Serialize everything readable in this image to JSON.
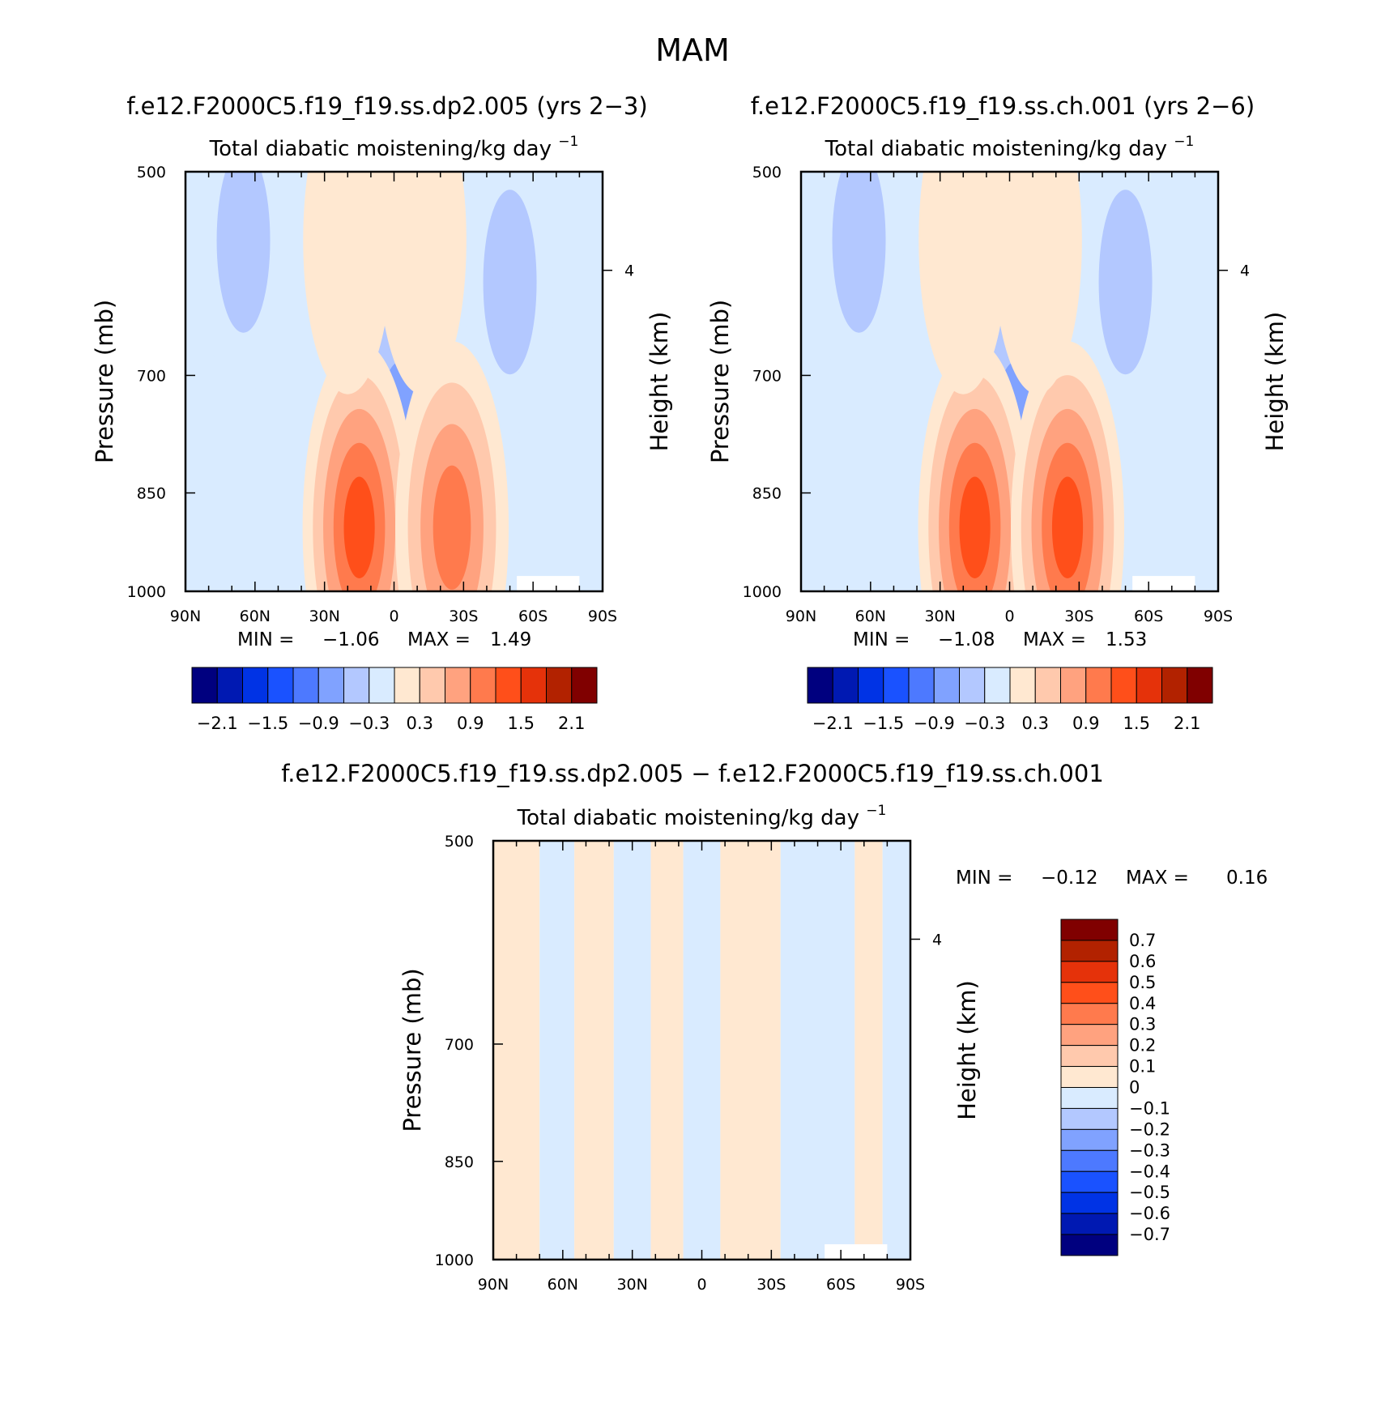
{
  "figure": {
    "title": "MAM"
  },
  "colors": {
    "scale": [
      "#00007f",
      "#0019b2",
      "#0033e5",
      "#1a52ff",
      "#4d79ff",
      "#80a2ff",
      "#b3c8ff",
      "#d9ebff",
      "#ffe8d1",
      "#ffc9ad",
      "#ffa27f",
      "#ff7a4d",
      "#ff4f1a",
      "#e5320a",
      "#b22200",
      "#800000"
    ],
    "missing": "#ffffff"
  },
  "chart_data": [
    {
      "type": "heatmap",
      "panel_title": "f.e12.F2000C5.f19_f19.ss.dp2.005 (yrs 2−3)",
      "title": "Total diabatic moistening/kg day",
      "title_exponent": "−1",
      "xlabel": "",
      "ylabel": "Pressure (mb)",
      "ylabel_right": "Height (km)",
      "x_ticks": [
        "90N",
        "60N",
        "30N",
        "0",
        "30S",
        "60S",
        "90S"
      ],
      "y_ticks": [
        "500",
        "700",
        "850",
        "1000"
      ],
      "right_ticks": [
        "4"
      ],
      "ylim": [
        1000,
        500
      ],
      "xlim": [
        90,
        -90
      ],
      "min_label": "MIN =",
      "min_value": "−1.06",
      "max_label": "MAX =",
      "max_value": "1.49",
      "colorbar": {
        "orientation": "horizontal",
        "tick_labels": [
          "−2.1",
          "−1.5",
          "−0.9",
          "−0.3",
          "0.3",
          "0.9",
          "1.5",
          "2.1"
        ]
      },
      "features": [
        {
          "lat": 65,
          "p": 560,
          "value": -0.45
        },
        {
          "lat": -50,
          "p": 600,
          "value": -0.45
        },
        {
          "lat": 3,
          "p": 760,
          "value": -0.95
        },
        {
          "lat": -3,
          "p": 780,
          "value": -0.75
        },
        {
          "lat": 15,
          "p": 900,
          "value": 1.4
        },
        {
          "lat": -25,
          "p": 900,
          "value": 1.2
        },
        {
          "lat": 20,
          "p": 560,
          "value": 0.25
        },
        {
          "lat": -12,
          "p": 560,
          "value": 0.25
        }
      ]
    },
    {
      "type": "heatmap",
      "panel_title": "f.e12.F2000C5.f19_f19.ss.ch.001 (yrs 2−6)",
      "title": "Total diabatic moistening/kg day",
      "title_exponent": "−1",
      "xlabel": "",
      "ylabel": "Pressure (mb)",
      "ylabel_right": "Height (km)",
      "x_ticks": [
        "90N",
        "60N",
        "30N",
        "0",
        "30S",
        "60S",
        "90S"
      ],
      "y_ticks": [
        "500",
        "700",
        "850",
        "1000"
      ],
      "right_ticks": [
        "4"
      ],
      "ylim": [
        1000,
        500
      ],
      "xlim": [
        90,
        -90
      ],
      "min_label": "MIN =",
      "min_value": "−1.08",
      "max_label": "MAX =",
      "max_value": "1.53",
      "colorbar": {
        "orientation": "horizontal",
        "tick_labels": [
          "−2.1",
          "−1.5",
          "−0.9",
          "−0.3",
          "0.3",
          "0.9",
          "1.5",
          "2.1"
        ]
      },
      "features": [
        {
          "lat": 65,
          "p": 560,
          "value": -0.45
        },
        {
          "lat": -50,
          "p": 600,
          "value": -0.45
        },
        {
          "lat": 3,
          "p": 760,
          "value": -1.0
        },
        {
          "lat": -3,
          "p": 780,
          "value": -0.75
        },
        {
          "lat": 15,
          "p": 900,
          "value": 1.45
        },
        {
          "lat": -25,
          "p": 900,
          "value": 1.25
        },
        {
          "lat": 20,
          "p": 560,
          "value": 0.25
        },
        {
          "lat": -12,
          "p": 560,
          "value": 0.25
        }
      ]
    },
    {
      "type": "heatmap",
      "panel_title": "f.e12.F2000C5.f19_f19.ss.dp2.005 − f.e12.F2000C5.f19_f19.ss.ch.001",
      "title": "Total diabatic moistening/kg day",
      "title_exponent": "−1",
      "xlabel": "",
      "ylabel": "Pressure (mb)",
      "ylabel_right": "Height (km)",
      "x_ticks": [
        "90N",
        "60N",
        "30N",
        "0",
        "30S",
        "60S",
        "90S"
      ],
      "y_ticks": [
        "500",
        "700",
        "850",
        "1000"
      ],
      "right_ticks": [
        "4"
      ],
      "ylim": [
        1000,
        500
      ],
      "xlim": [
        90,
        -90
      ],
      "min_label": "MIN =",
      "min_value": "−0.12",
      "max_label": "MAX =",
      "max_value": "0.16",
      "colorbar": {
        "orientation": "vertical",
        "tick_labels": [
          "0.7",
          "0.6",
          "0.5",
          "0.4",
          "0.3",
          "0.2",
          "0.1",
          "0",
          "−0.1",
          "−0.2",
          "−0.3",
          "−0.4",
          "−0.5",
          "−0.6",
          "−0.7"
        ]
      },
      "stripes": [
        {
          "lat_from": 90,
          "lat_to": 70,
          "value": 0.05
        },
        {
          "lat_from": 70,
          "lat_to": 55,
          "value": -0.05
        },
        {
          "lat_from": 55,
          "lat_to": 38,
          "value": 0.05
        },
        {
          "lat_from": 38,
          "lat_to": 22,
          "value": -0.05
        },
        {
          "lat_from": 22,
          "lat_to": 8,
          "value": 0.05
        },
        {
          "lat_from": 8,
          "lat_to": -8,
          "value": -0.05
        },
        {
          "lat_from": -8,
          "lat_to": -34,
          "value": 0.05
        },
        {
          "lat_from": -34,
          "lat_to": -66,
          "value": -0.05
        },
        {
          "lat_from": -66,
          "lat_to": -78,
          "value": 0.05
        },
        {
          "lat_from": -78,
          "lat_to": -90,
          "value": -0.05
        }
      ]
    }
  ]
}
